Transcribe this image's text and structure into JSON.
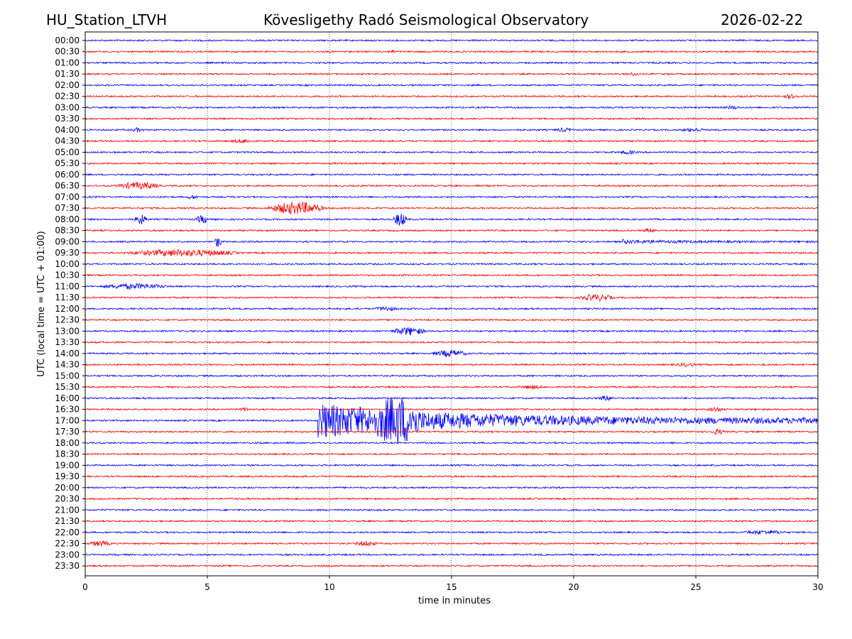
{
  "header": {
    "station": "HU_Station_LTVH",
    "observatory": "Kövesligethy Radó Seismological Observatory",
    "date": "2026-02-22"
  },
  "chart_data": {
    "type": "line",
    "title": "Kövesligethy Radó Seismological Observatory",
    "xlabel": "time in minutes",
    "ylabel": "UTC (local time = UTC + 01:00)",
    "xlim": [
      0,
      30
    ],
    "xticks": [
      "0",
      "5",
      "10",
      "15",
      "20",
      "25",
      "30"
    ],
    "grid": "vertical dotted at x ticks",
    "row_labels": [
      "00:00",
      "00:30",
      "01:00",
      "01:30",
      "02:00",
      "02:30",
      "03:00",
      "03:30",
      "04:00",
      "04:30",
      "05:00",
      "05:30",
      "06:00",
      "06:30",
      "07:00",
      "07:30",
      "08:00",
      "08:30",
      "09:00",
      "09:30",
      "10:00",
      "10:30",
      "11:00",
      "11:30",
      "12:00",
      "12:30",
      "13:00",
      "13:30",
      "14:00",
      "14:30",
      "15:00",
      "15:30",
      "16:00",
      "16:30",
      "17:00",
      "17:30",
      "18:00",
      "18:30",
      "19:00",
      "19:30",
      "20:00",
      "20:30",
      "21:00",
      "21:30",
      "22:00",
      "22:30",
      "23:00",
      "23:30"
    ],
    "colors": [
      "#0000ff",
      "#ff0000"
    ],
    "events": [
      {
        "row": 1,
        "start": 12.4,
        "dur": 0.3,
        "amp": 2
      },
      {
        "row": 3,
        "start": 22.2,
        "dur": 0.5,
        "amp": 1.5
      },
      {
        "row": 5,
        "start": 28.5,
        "dur": 0.8,
        "amp": 2
      },
      {
        "row": 6,
        "start": 26.2,
        "dur": 0.6,
        "amp": 2
      },
      {
        "row": 8,
        "start": 1.9,
        "dur": 0.5,
        "amp": 2.5
      },
      {
        "row": 8,
        "start": 19.2,
        "dur": 0.8,
        "amp": 2
      },
      {
        "row": 8,
        "start": 24.4,
        "dur": 1.0,
        "amp": 2
      },
      {
        "row": 9,
        "start": 5.9,
        "dur": 1.0,
        "amp": 2
      },
      {
        "row": 10,
        "start": 21.8,
        "dur": 0.8,
        "amp": 2
      },
      {
        "row": 13,
        "start": 1.2,
        "dur": 2.0,
        "amp": 4
      },
      {
        "row": 14,
        "start": 4.1,
        "dur": 0.6,
        "amp": 2
      },
      {
        "row": 15,
        "start": 7.4,
        "dur": 2.5,
        "amp": 8
      },
      {
        "row": 16,
        "start": 2.0,
        "dur": 0.6,
        "amp": 6
      },
      {
        "row": 16,
        "start": 4.5,
        "dur": 0.6,
        "amp": 5
      },
      {
        "row": 16,
        "start": 12.6,
        "dur": 0.6,
        "amp": 9
      },
      {
        "row": 17,
        "start": 22.8,
        "dur": 0.7,
        "amp": 2
      },
      {
        "row": 18,
        "start": 5.3,
        "dur": 0.3,
        "amp": 8
      },
      {
        "row": 18,
        "start": 22.0,
        "dur": 8.0,
        "amp": 2
      },
      {
        "row": 19,
        "start": 1.5,
        "dur": 5.0,
        "amp": 4
      },
      {
        "row": 22,
        "start": 0.5,
        "dur": 3.0,
        "amp": 3
      },
      {
        "row": 23,
        "start": 20.2,
        "dur": 1.5,
        "amp": 4
      },
      {
        "row": 24,
        "start": 11.8,
        "dur": 1.0,
        "amp": 2.5
      },
      {
        "row": 26,
        "start": 12.5,
        "dur": 1.5,
        "amp": 5
      },
      {
        "row": 28,
        "start": 14.2,
        "dur": 1.5,
        "amp": 4
      },
      {
        "row": 29,
        "start": 24.2,
        "dur": 0.8,
        "amp": 2
      },
      {
        "row": 31,
        "start": 17.8,
        "dur": 1.0,
        "amp": 2
      },
      {
        "row": 32,
        "start": 21.0,
        "dur": 0.7,
        "amp": 3
      },
      {
        "row": 33,
        "start": 6.3,
        "dur": 0.5,
        "amp": 2
      },
      {
        "row": 33,
        "start": 25.5,
        "dur": 0.6,
        "amp": 3
      },
      {
        "row": 34,
        "start": 9.5,
        "dur": 20.5,
        "amp": 22
      },
      {
        "row": 34,
        "start": 11.8,
        "dur": 2.0,
        "amp": 20
      },
      {
        "row": 35,
        "start": 25.6,
        "dur": 0.6,
        "amp": 3
      },
      {
        "row": 44,
        "start": 26.8,
        "dur": 2.0,
        "amp": 2
      },
      {
        "row": 45,
        "start": 0.1,
        "dur": 1.0,
        "amp": 3
      },
      {
        "row": 45,
        "start": 11.0,
        "dur": 1.0,
        "amp": 3
      }
    ]
  }
}
